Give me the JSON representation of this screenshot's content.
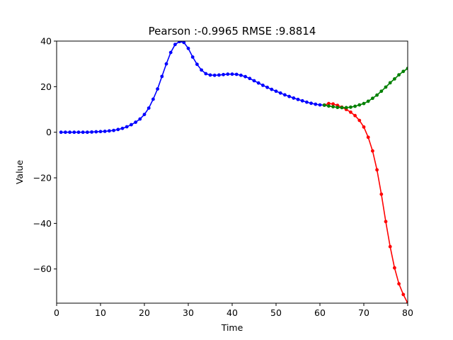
{
  "chart_data": {
    "type": "line",
    "title": "Pearson :-0.9965  RMSE :9.8814",
    "xlabel": "Time",
    "ylabel": "Value",
    "xlim": [
      0,
      80
    ],
    "ylim": [
      -75,
      40
    ],
    "xticks": [
      0,
      10,
      20,
      30,
      40,
      50,
      60,
      70,
      80
    ],
    "yticks": [
      -60,
      -40,
      -20,
      0,
      20,
      40
    ],
    "grid": false,
    "legend": "none",
    "series": [
      {
        "color": "#0000ff",
        "x": [
          1,
          2,
          3,
          4,
          5,
          6,
          7,
          8,
          9,
          10,
          11,
          12,
          13,
          14,
          15,
          16,
          17,
          18,
          19,
          20,
          21,
          22,
          23,
          24,
          25,
          26,
          27,
          28,
          29,
          30,
          31,
          32,
          33,
          34,
          35,
          36,
          37,
          38,
          39,
          40,
          41,
          42,
          43,
          44,
          45,
          46,
          47,
          48,
          49,
          50,
          51,
          52,
          53,
          54,
          55,
          56,
          57,
          58,
          59,
          60,
          61
        ],
        "y": [
          0,
          0,
          0,
          0,
          0,
          0,
          0,
          0.1,
          0.2,
          0.3,
          0.4,
          0.6,
          0.8,
          1.2,
          1.7,
          2.4,
          3.3,
          4.4,
          5.8,
          7.8,
          10.6,
          14.5,
          19,
          24.5,
          30,
          35,
          38.5,
          39.8,
          39.4,
          36.8,
          33,
          29.8,
          27.3,
          25.7,
          25.1,
          25.0,
          25.1,
          25.3,
          25.5,
          25.5,
          25.4,
          25.0,
          24.4,
          23.6,
          22.6,
          21.6,
          20.6,
          19.7,
          18.8,
          18.0,
          17.2,
          16.4,
          15.7,
          15.0,
          14.4,
          13.8,
          13.2,
          12.7,
          12.3,
          12.0,
          11.9
        ]
      },
      {
        "color": "#ff0000",
        "x": [
          61,
          62,
          63,
          64,
          65,
          66,
          67,
          68,
          69,
          70,
          71,
          72,
          73,
          74,
          75,
          76,
          77,
          78,
          79,
          80
        ],
        "y": [
          11.9,
          12.6,
          12.4,
          11.8,
          11.0,
          10.0,
          8.8,
          7.3,
          5.2,
          2.3,
          -2.2,
          -8.2,
          -16.5,
          -27.2,
          -39.2,
          -50.2,
          -59.5,
          -66.5,
          -71.2,
          -75
        ]
      },
      {
        "color": "#008000",
        "x": [
          61,
          62,
          63,
          64,
          65,
          66,
          67,
          68,
          69,
          70,
          71,
          72,
          73,
          74,
          75,
          76,
          77,
          78,
          79,
          80
        ],
        "y": [
          11.9,
          11.5,
          11.2,
          10.9,
          10.8,
          10.8,
          11.0,
          11.4,
          12.0,
          12.6,
          13.6,
          14.9,
          16.3,
          18.0,
          19.8,
          21.7,
          23.4,
          25.2,
          26.7,
          28.0
        ]
      }
    ]
  }
}
